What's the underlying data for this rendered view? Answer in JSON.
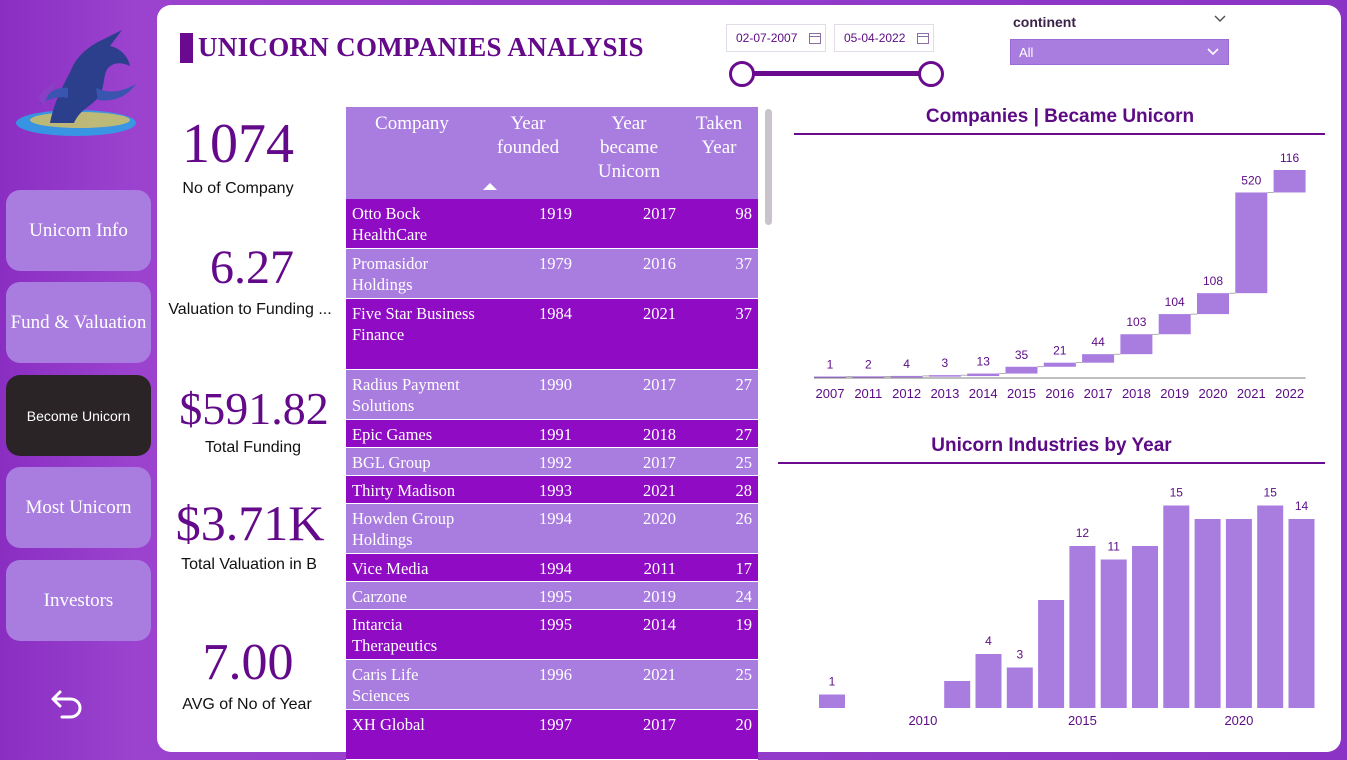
{
  "title": "UNICORN COMPANIES ANALYSIS",
  "nav": {
    "items": [
      "Unicorn Info",
      "Fund & Valuation",
      "Become Unicorn",
      "Most Unicorn",
      "Investors"
    ],
    "active": "Become Unicorn"
  },
  "date_slicer": {
    "start": "02-07-2007",
    "end": "05-04-2022"
  },
  "continent_slicer": {
    "label": "continent",
    "value": "All"
  },
  "kpis": [
    {
      "value": "1074",
      "label": "No of Company"
    },
    {
      "value": "6.27",
      "label": "Valuation to Funding ..."
    },
    {
      "value": "$591.82",
      "label": "Total Funding"
    },
    {
      "value": "$3.71K",
      "label": "Total Valuation in B"
    },
    {
      "value": "7.00",
      "label": "AVG of No of Year"
    }
  ],
  "table": {
    "headers": [
      "Company",
      "Year founded",
      "Year became Unicorn",
      "Taken Year"
    ],
    "rows": [
      [
        "Otto Bock HealthCare",
        "1919",
        "2017",
        "98"
      ],
      [
        "Promasidor Holdings",
        "1979",
        "2016",
        "37"
      ],
      [
        "Five Star Business Finance",
        "1984",
        "2021",
        "37"
      ],
      [
        "Radius Payment Solutions",
        "1990",
        "2017",
        "27"
      ],
      [
        "Epic Games",
        "1991",
        "2018",
        "27"
      ],
      [
        "BGL Group",
        "1992",
        "2017",
        "25"
      ],
      [
        "Thirty Madison",
        "1993",
        "2021",
        "28"
      ],
      [
        "Howden Group Holdings",
        "1994",
        "2020",
        "26"
      ],
      [
        "Vice Media",
        "1994",
        "2011",
        "17"
      ],
      [
        "Carzone",
        "1995",
        "2019",
        "24"
      ],
      [
        "Intarcia Therapeutics",
        "1995",
        "2014",
        "19"
      ],
      [
        "Caris Life Sciences",
        "1996",
        "2021",
        "25"
      ],
      [
        "XH Global",
        "1997",
        "2017",
        "20"
      ]
    ]
  },
  "chart_data": [
    {
      "type": "waterfall",
      "title": "Companies | Became Unicorn",
      "categories": [
        "2007",
        "2011",
        "2012",
        "2013",
        "2014",
        "2015",
        "2016",
        "2017",
        "2018",
        "2019",
        "2020",
        "2021",
        "2022"
      ],
      "values": [
        1,
        2,
        4,
        3,
        13,
        35,
        21,
        44,
        103,
        104,
        108,
        520,
        116
      ],
      "color": "#a97ce0"
    },
    {
      "type": "bar",
      "title": "Unicorn Industries by Year",
      "x": [
        2007,
        2011,
        2012,
        2013,
        2014,
        2015,
        2016,
        2017,
        2018,
        2019,
        2020,
        2021,
        2022
      ],
      "values": [
        1,
        2,
        4,
        3,
        8,
        12,
        11,
        12,
        15,
        14,
        14,
        15,
        14
      ],
      "labeled": [
        true,
        false,
        true,
        true,
        false,
        true,
        true,
        false,
        true,
        false,
        false,
        true,
        true
      ],
      "xticks": [
        "2010",
        "2015",
        "2020"
      ],
      "ylim": [
        0,
        16
      ],
      "color": "#a97ce0"
    }
  ]
}
